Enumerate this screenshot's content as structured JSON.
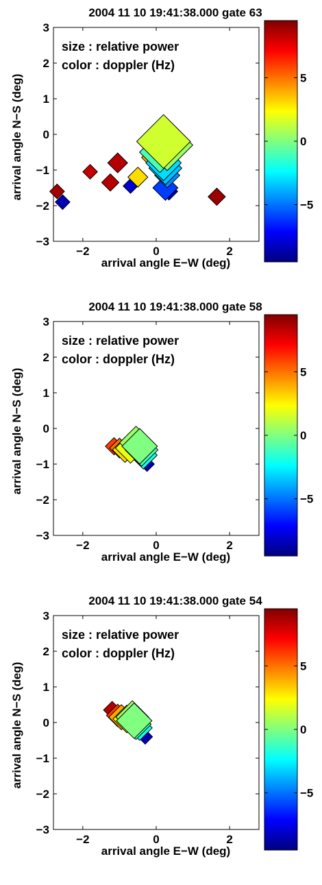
{
  "colors": {
    "colormap": "jet",
    "axis": "#000000",
    "background": "#ffffff"
  },
  "chart_data": [
    {
      "type": "scatter",
      "title": "2004 11 10  19:41:38.000 gate 63",
      "xlabel": "arrival angle E−W (deg)",
      "ylabel": "arrival angle N−S (deg)",
      "xlim": [
        -2.8,
        2.8
      ],
      "ylim": [
        -3,
        3
      ],
      "xticks": [
        {
          "v": -2,
          "label": "−2"
        },
        {
          "v": 0,
          "label": "0"
        },
        {
          "v": 2,
          "label": "2"
        }
      ],
      "yticks": [
        {
          "v": 3,
          "label": "3"
        },
        {
          "v": 2,
          "label": "2"
        },
        {
          "v": 1,
          "label": "1"
        },
        {
          "v": 0,
          "label": "0"
        },
        {
          "v": -1,
          "label": "−1"
        },
        {
          "v": -2,
          "label": "−2"
        },
        {
          "v": -3,
          "label": "−3"
        }
      ],
      "annotations": [
        "size  : relative power",
        "color : doppler (Hz)"
      ],
      "colorbar": {
        "label": "doppler (Hz)",
        "range": [
          -9.5,
          9.5
        ],
        "ticks": [
          {
            "v": 5,
            "label": "5"
          },
          {
            "v": 0,
            "label": "0"
          },
          {
            "v": -5,
            "label": "−5"
          }
        ]
      },
      "points": [
        {
          "x": -2.7,
          "y": -1.6,
          "size": 0.15,
          "doppler": 8.8
        },
        {
          "x": -2.55,
          "y": -1.9,
          "size": 0.15,
          "doppler": -8.5
        },
        {
          "x": -1.8,
          "y": -1.05,
          "size": 0.15,
          "doppler": 8.2
        },
        {
          "x": -1.05,
          "y": -0.8,
          "size": 0.25,
          "doppler": 8.5
        },
        {
          "x": -1.25,
          "y": -1.35,
          "size": 0.2,
          "doppler": 8.5
        },
        {
          "x": -0.5,
          "y": -1.2,
          "size": 0.25,
          "doppler": 3
        },
        {
          "x": -0.7,
          "y": -1.45,
          "size": 0.15,
          "doppler": -8
        },
        {
          "x": 1.65,
          "y": -1.75,
          "size": 0.2,
          "doppler": 9
        },
        {
          "x": 0.35,
          "y": -1.6,
          "size": 0.2,
          "doppler": -8.5
        },
        {
          "x": 0.25,
          "y": -1.5,
          "size": 0.35,
          "doppler": -6
        },
        {
          "x": 0.3,
          "y": -1.15,
          "size": 0.35,
          "doppler": -4.5
        },
        {
          "x": 0.25,
          "y": -0.95,
          "size": 0.5,
          "doppler": -3.5
        },
        {
          "x": 0.2,
          "y": -0.8,
          "size": 0.55,
          "doppler": -3
        },
        {
          "x": 0.05,
          "y": -0.65,
          "size": 0.5,
          "doppler": 4
        },
        {
          "x": 0.1,
          "y": -0.5,
          "size": 0.65,
          "doppler": -1
        },
        {
          "x": 0.3,
          "y": -0.3,
          "size": 0.85,
          "doppler": 0.5
        },
        {
          "x": 0.2,
          "y": -0.2,
          "size": 0.9,
          "doppler": 1.5
        }
      ]
    },
    {
      "type": "scatter",
      "title": "2004 11 10  19:41:38.000 gate 58",
      "xlabel": "arrival angle E−W (deg)",
      "ylabel": "arrival angle N−S (deg)",
      "xlim": [
        -2.8,
        2.8
      ],
      "ylim": [
        -3,
        3
      ],
      "xticks": [
        {
          "v": -2,
          "label": "−2"
        },
        {
          "v": 0,
          "label": "0"
        },
        {
          "v": 2,
          "label": "2"
        }
      ],
      "yticks": [
        {
          "v": 3,
          "label": "3"
        },
        {
          "v": 2,
          "label": "2"
        },
        {
          "v": 1,
          "label": "1"
        },
        {
          "v": 0,
          "label": "0"
        },
        {
          "v": -1,
          "label": "−1"
        },
        {
          "v": -2,
          "label": "−2"
        },
        {
          "v": -3,
          "label": "−3"
        }
      ],
      "annotations": [
        "size  : relative power",
        "color : doppler (Hz)"
      ],
      "colorbar": {
        "label": "doppler (Hz)",
        "range": [
          -9.5,
          9.5
        ],
        "ticks": [
          {
            "v": 5,
            "label": "5"
          },
          {
            "v": 0,
            "label": "0"
          },
          {
            "v": -5,
            "label": "−5"
          }
        ]
      },
      "points": [
        {
          "x": -1.15,
          "y": -0.5,
          "size": 0.2,
          "doppler": 6
        },
        {
          "x": -1.0,
          "y": -0.55,
          "size": 0.25,
          "doppler": 5
        },
        {
          "x": -0.25,
          "y": -1.0,
          "size": 0.15,
          "doppler": -8.5
        },
        {
          "x": -0.35,
          "y": -0.75,
          "size": 0.4,
          "doppler": -2
        },
        {
          "x": -0.4,
          "y": -0.6,
          "size": 0.5,
          "doppler": -1
        },
        {
          "x": -0.45,
          "y": -0.5,
          "size": 0.55,
          "doppler": 0
        },
        {
          "x": -0.55,
          "y": -0.4,
          "size": 0.5,
          "doppler": 0.5
        },
        {
          "x": -0.7,
          "y": -0.55,
          "size": 0.45,
          "doppler": 2
        },
        {
          "x": -0.85,
          "y": -0.6,
          "size": 0.35,
          "doppler": 3
        }
      ]
    },
    {
      "type": "scatter",
      "title": "2004 11 10  19:41:38.000 gate 54",
      "xlabel": "arrival angle E−W (deg)",
      "ylabel": "arrival angle N−S (deg)",
      "xlim": [
        -2.8,
        2.8
      ],
      "ylim": [
        -3,
        3
      ],
      "xticks": [
        {
          "v": -2,
          "label": "−2"
        },
        {
          "v": 0,
          "label": "0"
        },
        {
          "v": 2,
          "label": "2"
        }
      ],
      "yticks": [
        {
          "v": 3,
          "label": "3"
        },
        {
          "v": 2,
          "label": "2"
        },
        {
          "v": 1,
          "label": "1"
        },
        {
          "v": 0,
          "label": "0"
        },
        {
          "v": -1,
          "label": "−1"
        },
        {
          "v": -2,
          "label": "−2"
        },
        {
          "v": -3,
          "label": "−3"
        }
      ],
      "annotations": [
        "size  : relative power",
        "color : doppler (Hz)"
      ],
      "colorbar": {
        "label": "doppler (Hz)",
        "range": [
          -9.5,
          9.5
        ],
        "ticks": [
          {
            "v": 5,
            "label": "5"
          },
          {
            "v": 0,
            "label": "0"
          },
          {
            "v": -5,
            "label": "−5"
          }
        ]
      },
      "points": [
        {
          "x": -1.2,
          "y": 0.35,
          "size": 0.2,
          "doppler": 8.5
        },
        {
          "x": -0.3,
          "y": -0.4,
          "size": 0.15,
          "doppler": -8.5
        },
        {
          "x": -0.45,
          "y": -0.15,
          "size": 0.35,
          "doppler": -2
        },
        {
          "x": -0.55,
          "y": -0.05,
          "size": 0.45,
          "doppler": -1
        },
        {
          "x": -0.6,
          "y": 0.05,
          "size": 0.55,
          "doppler": 0
        },
        {
          "x": -0.65,
          "y": 0.15,
          "size": 0.5,
          "doppler": 0.5
        },
        {
          "x": -0.8,
          "y": 0.1,
          "size": 0.4,
          "doppler": 2.5
        },
        {
          "x": -0.95,
          "y": 0.15,
          "size": 0.35,
          "doppler": 4
        },
        {
          "x": -1.05,
          "y": 0.2,
          "size": 0.3,
          "doppler": 6
        }
      ]
    }
  ]
}
